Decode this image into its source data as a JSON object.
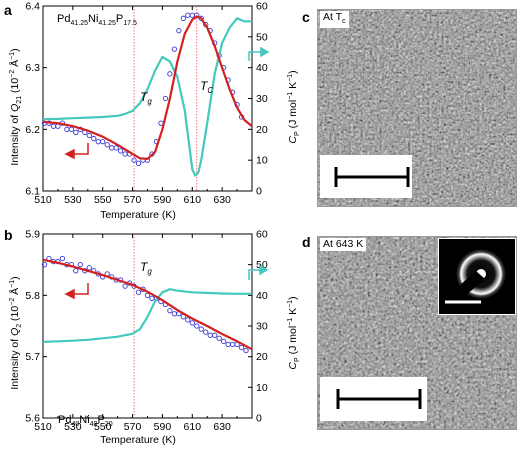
{
  "panels": {
    "a": {
      "letter": "a",
      "composition": {
        "parts": [
          [
            "Pd",
            "41.25"
          ],
          [
            "Ni",
            "41.25"
          ],
          [
            "P",
            "17.5"
          ]
        ]
      },
      "x_ticks": [
        "510",
        "530",
        "550",
        "570",
        "590",
        "610",
        "630"
      ],
      "y_left_ticks": [
        "6.1",
        "6.2",
        "6.3",
        "6.4"
      ],
      "y_right_ticks": [
        "0",
        "10",
        "20",
        "30",
        "40",
        "50",
        "60"
      ],
      "xlabel": "Temperature (K)",
      "ylabel_left": {
        "pre": "Intensity of ",
        "sym": "Q",
        "sub": "21",
        "post": " (10",
        "sup": "−2",
        "tail": " Å",
        "sup2": "−1",
        "close": ")"
      },
      "ylabel_right": {
        "sym": "C",
        "sub": "P",
        "post": " (J mol",
        "sup": "−1",
        "mid": " K",
        "sup2": "−1",
        "close": ")"
      },
      "annotations": {
        "tg": "T",
        "tg_sub": "g",
        "tc": "T",
        "tc_sub": "C"
      }
    },
    "b": {
      "letter": "b",
      "composition": {
        "parts": [
          [
            "Pd",
            "40"
          ],
          [
            "Ni",
            "40"
          ],
          [
            "P",
            "20"
          ]
        ]
      },
      "x_ticks": [
        "510",
        "530",
        "550",
        "570",
        "590",
        "610",
        "630"
      ],
      "y_left_ticks": [
        "5.6",
        "5.7",
        "5.8",
        "5.9"
      ],
      "y_right_ticks": [
        "0",
        "10",
        "20",
        "30",
        "40",
        "50",
        "60"
      ],
      "xlabel": "Temperature (K)",
      "ylabel_left": {
        "pre": "Intensity of ",
        "sym": "Q",
        "sub": "2",
        "post": " (10",
        "sup": "−2",
        "tail": " Å",
        "sup2": "−1",
        "close": ")"
      },
      "ylabel_right": {
        "sym": "C",
        "sub": "P",
        "post": " (J mol",
        "sup": "−1",
        "mid": " K",
        "sup2": "−1",
        "close": ")"
      },
      "annotations": {
        "tg": "T",
        "tg_sub": "g"
      }
    },
    "c": {
      "letter": "c",
      "label_main": "At T",
      "label_sub": "c"
    },
    "d": {
      "letter": "d",
      "label": "At 643 K"
    }
  },
  "colors": {
    "fit": "#d42020",
    "cp": "#45c8be",
    "points": "#3a3ad6",
    "guide": "#e05050"
  },
  "chart_data": [
    {
      "type": "scatter",
      "title": "",
      "xlabel": "Temperature (K)",
      "ylabel": "Intensity of Q21 (10^-2 Å^-1)",
      "ylabel_right": "CP (J mol^-1 K^-1)",
      "xlim": [
        510,
        650
      ],
      "ylim": [
        6.1,
        6.4
      ],
      "ylim_right": [
        0,
        60
      ],
      "series": [
        {
          "kind": "points",
          "axis": "left",
          "x": [
            511,
            514,
            517,
            520,
            523,
            526,
            529,
            532,
            535,
            538,
            541,
            544,
            547,
            550,
            553,
            556,
            559,
            562,
            565,
            568,
            571,
            574,
            577,
            580,
            583,
            586,
            589,
            592,
            595,
            598,
            601,
            604,
            607,
            610,
            613,
            616,
            619,
            622,
            625,
            628,
            631,
            634,
            637,
            640,
            643
          ],
          "y": [
            6.21,
            6.21,
            6.205,
            6.205,
            6.21,
            6.2,
            6.2,
            6.195,
            6.2,
            6.195,
            6.19,
            6.185,
            6.18,
            6.18,
            6.175,
            6.17,
            6.17,
            6.165,
            6.16,
            6.16,
            6.15,
            6.145,
            6.15,
            6.15,
            6.16,
            6.18,
            6.21,
            6.25,
            6.29,
            6.33,
            6.36,
            6.38,
            6.385,
            6.385,
            6.385,
            6.38,
            6.37,
            6.36,
            6.34,
            6.32,
            6.3,
            6.28,
            6.26,
            6.24,
            6.22
          ]
        },
        {
          "kind": "fit",
          "axis": "left",
          "x": [
            510,
            520,
            530,
            540,
            550,
            560,
            570,
            575,
            580,
            585,
            590,
            595,
            600,
            605,
            610,
            613,
            616,
            620,
            625,
            630,
            635,
            640,
            645,
            650
          ],
          "y": [
            6.212,
            6.21,
            6.205,
            6.198,
            6.188,
            6.175,
            6.16,
            6.153,
            6.152,
            6.163,
            6.2,
            6.25,
            6.31,
            6.355,
            6.378,
            6.383,
            6.38,
            6.365,
            6.335,
            6.3,
            6.265,
            6.235,
            6.215,
            6.205
          ]
        },
        {
          "kind": "cp",
          "axis": "right",
          "x": [
            510,
            520,
            530,
            540,
            550,
            560,
            565,
            570,
            575,
            580,
            585,
            590,
            595,
            600,
            605,
            610,
            612,
            614,
            616,
            620,
            625,
            630,
            635,
            640,
            645,
            650
          ],
          "y": [
            23.3,
            23.4,
            23.6,
            23.8,
            24.0,
            24.4,
            25.0,
            26.0,
            28.5,
            33,
            39,
            43.5,
            42,
            37,
            26,
            7,
            5,
            6,
            10,
            22,
            38,
            48,
            53,
            56,
            55,
            55
          ]
        }
      ],
      "annotations": [
        {
          "text": "Tg",
          "x": 571
        },
        {
          "text": "TC",
          "x": 613
        }
      ]
    },
    {
      "type": "scatter",
      "title": "",
      "xlabel": "Temperature (K)",
      "ylabel": "Intensity of Q2 (10^-2 Å^-1)",
      "ylabel_right": "CP (J mol^-1 K^-1)",
      "xlim": [
        510,
        650
      ],
      "ylim": [
        5.6,
        5.9
      ],
      "ylim_right": [
        0,
        60
      ],
      "series": [
        {
          "kind": "points",
          "axis": "left",
          "x": [
            511,
            514,
            517,
            520,
            523,
            526,
            529,
            532,
            535,
            538,
            541,
            544,
            547,
            550,
            553,
            556,
            559,
            562,
            565,
            568,
            571,
            574,
            577,
            580,
            583,
            586,
            589,
            592,
            595,
            598,
            601,
            604,
            607,
            610,
            613,
            616,
            619,
            622,
            625,
            628,
            631,
            634,
            637,
            640,
            643,
            646
          ],
          "y": [
            5.85,
            5.86,
            5.855,
            5.855,
            5.86,
            5.85,
            5.85,
            5.84,
            5.85,
            5.84,
            5.845,
            5.84,
            5.835,
            5.83,
            5.835,
            5.83,
            5.825,
            5.825,
            5.815,
            5.82,
            5.815,
            5.805,
            5.81,
            5.8,
            5.795,
            5.795,
            5.79,
            5.785,
            5.775,
            5.77,
            5.77,
            5.765,
            5.76,
            5.755,
            5.75,
            5.745,
            5.74,
            5.735,
            5.735,
            5.73,
            5.725,
            5.72,
            5.72,
            5.72,
            5.715,
            5.71
          ]
        },
        {
          "kind": "fit",
          "axis": "left",
          "x": [
            510,
            520,
            530,
            540,
            550,
            560,
            570,
            580,
            590,
            600,
            610,
            620,
            630,
            640,
            650
          ],
          "y": [
            5.858,
            5.853,
            5.847,
            5.84,
            5.833,
            5.825,
            5.817,
            5.806,
            5.792,
            5.776,
            5.762,
            5.75,
            5.737,
            5.725,
            5.712
          ]
        },
        {
          "kind": "cp",
          "axis": "right",
          "x": [
            510,
            520,
            530,
            540,
            550,
            560,
            565,
            570,
            575,
            580,
            585,
            590,
            595,
            600,
            610,
            620,
            630,
            640,
            650
          ],
          "y": [
            24.8,
            25,
            25.2,
            25.5,
            26,
            26.5,
            27,
            27.5,
            29,
            33,
            38,
            41,
            42,
            41.5,
            41,
            40.8,
            40.6,
            40.5,
            40.5
          ]
        }
      ],
      "annotations": [
        {
          "text": "Tg",
          "x": 571
        }
      ]
    }
  ]
}
